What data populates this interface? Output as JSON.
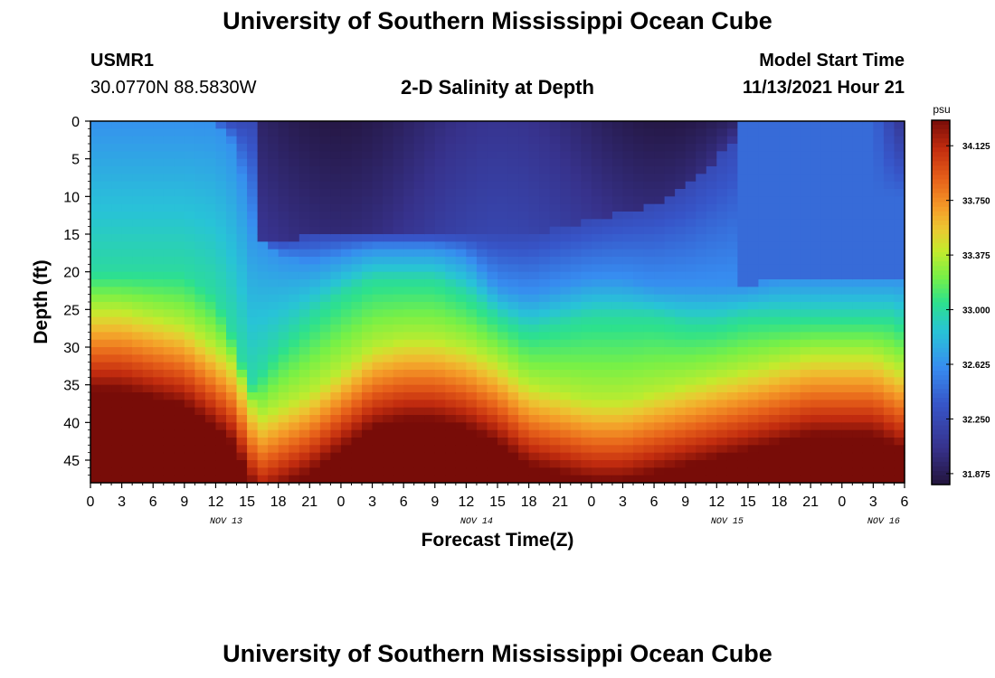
{
  "header": {
    "title": "University of Southern Mississippi Ocean Cube",
    "footer_title": "University of Southern Mississippi Ocean Cube",
    "station_id": "USMR1",
    "station_coords": "30.0770N  88.5830W",
    "start_label": "Model Start Time",
    "start_value": "11/13/2021 Hour 21"
  },
  "chart_data": {
    "type": "heatmap",
    "title": "2-D Salinity at Depth",
    "xlabel": "Forecast Time(Z)",
    "ylabel": "Depth (ft)",
    "x_ticks": [
      "0",
      "3",
      "6",
      "9",
      "12",
      "15",
      "18",
      "21",
      "0",
      "3",
      "6",
      "9",
      "12",
      "15",
      "18",
      "21",
      "0",
      "3",
      "6",
      "9",
      "12",
      "15",
      "18",
      "21",
      "0",
      "3",
      "6"
    ],
    "day_labels": [
      {
        "label": "NOV 13",
        "hours_from_start": 13
      },
      {
        "label": "NOV 14",
        "hours_from_start": 37
      },
      {
        "label": "NOV 15",
        "hours_from_start": 61
      },
      {
        "label": "NOV 16",
        "hours_from_start": 76
      }
    ],
    "xlim_hours": [
      0,
      78
    ],
    "y_ticks": [
      0,
      5,
      10,
      15,
      20,
      25,
      30,
      35,
      40,
      45
    ],
    "ylim": [
      0,
      48
    ],
    "colorbar": {
      "unit": "psu",
      "min": 31.8,
      "max": 34.3,
      "ticks": [
        31.875,
        32.25,
        32.625,
        33.0,
        33.375,
        33.75,
        34.125
      ],
      "tick_labels": [
        "31.875",
        "32.250",
        "32.625",
        "33.000",
        "33.375",
        "33.750",
        "34.125"
      ]
    },
    "time_hours": [
      0,
      3,
      6,
      9,
      12,
      13.5,
      15,
      15.6,
      16.5,
      18,
      21,
      24,
      27,
      30,
      33,
      36,
      39,
      42,
      45,
      48,
      51,
      54,
      57,
      60,
      63,
      66,
      69,
      72,
      75,
      76.5,
      78
    ],
    "boundaries": {
      "comment": "depth in ft of isohalines at each time_hours entry",
      "top_33_375": [
        25,
        25,
        26,
        27,
        30,
        32,
        36,
        38,
        39,
        38,
        36,
        33,
        30,
        29,
        29,
        30,
        32,
        35,
        36,
        37,
        37,
        36,
        35,
        34,
        33,
        32,
        31,
        31,
        31,
        32,
        33
      ],
      "top_33_000": [
        20,
        20,
        20,
        20,
        23,
        28,
        34,
        35,
        33,
        30,
        26,
        23,
        21,
        21,
        21,
        23,
        26,
        28,
        27,
        26,
        26,
        26,
        27,
        27,
        26,
        26,
        26,
        26,
        26,
        26,
        27
      ],
      "top_32_625": [
        0,
        0,
        0,
        0,
        0,
        3,
        10,
        15,
        16,
        18,
        19,
        18,
        17,
        17,
        17,
        18,
        22,
        23,
        22,
        21,
        21,
        22,
        22,
        22,
        22,
        21,
        21,
        21,
        21,
        21,
        21
      ],
      "bottom_32_250": [
        0,
        0,
        0,
        0,
        0,
        0,
        0,
        0,
        16,
        16,
        15,
        15,
        15,
        15,
        15,
        15,
        15,
        15,
        14,
        13,
        12,
        11,
        9,
        5,
        0,
        0,
        0,
        0,
        0,
        0,
        0
      ]
    },
    "salinity_at_depth": {
      "comment": "approximate psu values at selected depths",
      "surface_min": 31.9,
      "upper_max": 34.3
    }
  }
}
